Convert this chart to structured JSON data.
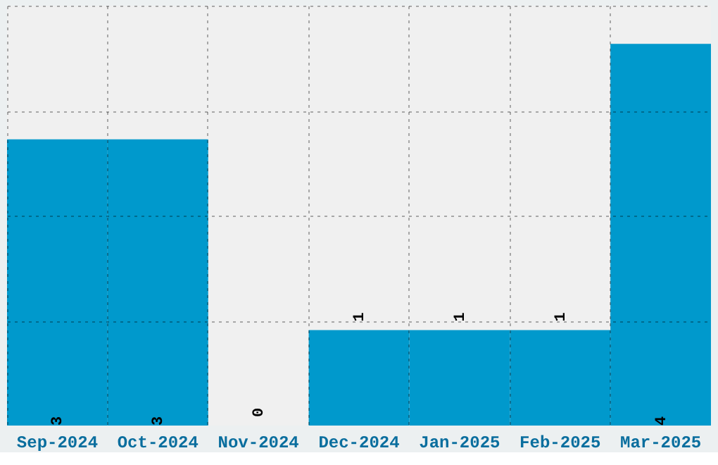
{
  "chart_data": {
    "type": "bar",
    "categories": [
      "Sep-2024",
      "Oct-2024",
      "Nov-2024",
      "Dec-2024",
      "Jan-2025",
      "Feb-2025",
      "Mar-2025"
    ],
    "values": [
      3,
      3,
      0,
      1,
      1,
      1,
      4
    ],
    "color": "#0099cc",
    "ylim": [
      0,
      4.4
    ],
    "yticks": [
      {
        "value": 1.1,
        "label": null
      },
      {
        "value": 2.2,
        "label": null
      },
      {
        "value": 3.3,
        "label": null
      },
      {
        "value": 4.4,
        "label": null
      }
    ],
    "tick_labels": "x",
    "grid": true,
    "data_labels": true
  }
}
